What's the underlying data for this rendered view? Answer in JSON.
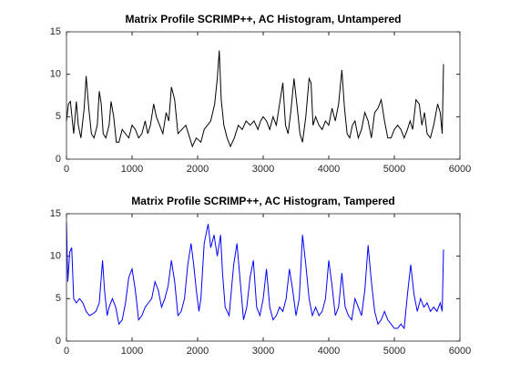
{
  "chart_data": [
    {
      "type": "line",
      "title": "Matrix Profile SCRIMP++, AC Histogram, Untampered",
      "x": [
        0,
        30,
        60,
        90,
        110,
        150,
        180,
        220,
        270,
        300,
        340,
        380,
        420,
        470,
        500,
        530,
        560,
        600,
        650,
        680,
        720,
        760,
        800,
        850,
        900,
        950,
        1000,
        1050,
        1100,
        1150,
        1200,
        1240,
        1280,
        1330,
        1370,
        1420,
        1470,
        1520,
        1560,
        1600,
        1650,
        1700,
        1760,
        1820,
        1880,
        1920,
        1980,
        2050,
        2100,
        2150,
        2200,
        2260,
        2300,
        2330,
        2360,
        2400,
        2450,
        2500,
        2560,
        2620,
        2680,
        2740,
        2800,
        2860,
        2920,
        2960,
        3000,
        3050,
        3100,
        3150,
        3200,
        3250,
        3300,
        3340,
        3380,
        3420,
        3470,
        3520,
        3560,
        3600,
        3650,
        3700,
        3730,
        3760,
        3800,
        3850,
        3900,
        3950,
        4000,
        4050,
        4100,
        4150,
        4200,
        4240,
        4280,
        4320,
        4360,
        4400,
        4450,
        4500,
        4550,
        4600,
        4650,
        4700,
        4750,
        4800,
        4850,
        4900,
        4950,
        5000,
        5050,
        5100,
        5150,
        5200,
        5240,
        5280,
        5330,
        5380,
        5420,
        5460,
        5500,
        5550,
        5600,
        5660,
        5700,
        5730,
        5750
      ],
      "series": [
        {
          "color": "#000000",
          "values": [
            4.5,
            6.5,
            6.8,
            4.5,
            3,
            6.8,
            4,
            2.5,
            6,
            9.8,
            6,
            3,
            2.5,
            4,
            8,
            6.5,
            3,
            2.5,
            4,
            6.8,
            5,
            2,
            2,
            3.5,
            3,
            2.5,
            4,
            3.5,
            2.5,
            3,
            4.5,
            3,
            4,
            6.5,
            5,
            4,
            3,
            5.5,
            4.5,
            8.5,
            7,
            3,
            3.5,
            4,
            2.5,
            1.5,
            2.5,
            2,
            3.5,
            4,
            4.5,
            6.5,
            9.5,
            12.8,
            7,
            4,
            2.5,
            1.5,
            2.5,
            4,
            3.5,
            4.5,
            4,
            4.5,
            3.5,
            4.5,
            5,
            4.5,
            3.5,
            5,
            4,
            6.5,
            9,
            4,
            3,
            5.5,
            9.5,
            6,
            3,
            2,
            5,
            9.5,
            9,
            4,
            5,
            4,
            3.5,
            4.5,
            4,
            6,
            4.5,
            6.5,
            10.5,
            6,
            3,
            2.5,
            4,
            4.5,
            2.5,
            3.5,
            5.5,
            4.5,
            2.5,
            5.5,
            6,
            7,
            4.5,
            2.5,
            2.5,
            3.5,
            4,
            3.5,
            2.5,
            3.5,
            4.5,
            3.5,
            7,
            6.5,
            4,
            5.5,
            3,
            2.5,
            4,
            6.5,
            5.5,
            3,
            11.2
          ]
        }
      ],
      "xlim": [
        0,
        6000
      ],
      "xticks": [
        0,
        1000,
        2000,
        3000,
        4000,
        5000,
        6000
      ],
      "ylim": [
        0,
        15
      ],
      "yticks": [
        0,
        5,
        10,
        15
      ]
    },
    {
      "type": "line",
      "title": "Matrix Profile SCRIMP++, AC Histogram, Tampered",
      "x": [
        0,
        20,
        50,
        80,
        110,
        150,
        200,
        250,
        300,
        350,
        400,
        450,
        500,
        550,
        580,
        620,
        650,
        700,
        750,
        800,
        850,
        900,
        950,
        1000,
        1050,
        1100,
        1150,
        1200,
        1250,
        1300,
        1350,
        1400,
        1450,
        1500,
        1550,
        1600,
        1650,
        1700,
        1750,
        1800,
        1850,
        1900,
        1940,
        1980,
        2020,
        2050,
        2100,
        2160,
        2200,
        2250,
        2300,
        2350,
        2380,
        2420,
        2480,
        2550,
        2600,
        2650,
        2700,
        2750,
        2800,
        2850,
        2900,
        2950,
        3000,
        3050,
        3100,
        3150,
        3200,
        3250,
        3300,
        3350,
        3400,
        3450,
        3500,
        3550,
        3600,
        3650,
        3700,
        3750,
        3800,
        3850,
        3900,
        3950,
        4000,
        4050,
        4100,
        4150,
        4200,
        4250,
        4300,
        4350,
        4400,
        4450,
        4500,
        4550,
        4600,
        4650,
        4700,
        4750,
        4800,
        4850,
        4900,
        4950,
        5000,
        5050,
        5100,
        5150,
        5200,
        5250,
        5300,
        5350,
        5400,
        5450,
        5500,
        5550,
        5600,
        5650,
        5700,
        5730,
        5750
      ],
      "series": [
        {
          "color": "#0000ff",
          "values": [
            14,
            7,
            10.5,
            11,
            5,
            4.5,
            5,
            4.5,
            3.5,
            3,
            3.2,
            3.5,
            4.5,
            9.5,
            6,
            3,
            4,
            5,
            4,
            2,
            2.5,
            4.5,
            7.5,
            8.5,
            6,
            2.5,
            3,
            4,
            4.5,
            5,
            7,
            6,
            4,
            5,
            6.5,
            9.5,
            7,
            3,
            3.5,
            5,
            9,
            11.5,
            9,
            6,
            3.5,
            5,
            11.5,
            13.8,
            11,
            12.5,
            10,
            12.5,
            8,
            4,
            3,
            9,
            11.5,
            7,
            2.5,
            4,
            7.5,
            9.5,
            4,
            3,
            5,
            8.5,
            4,
            2.5,
            3,
            4,
            3.5,
            5,
            8.5,
            6,
            3,
            5,
            12.5,
            9,
            5,
            3,
            4,
            3,
            3.5,
            5,
            9.5,
            6.5,
            3,
            4,
            8,
            4,
            3,
            2.5,
            5,
            4,
            3,
            6,
            11.3,
            7,
            3.5,
            2,
            2.5,
            3.5,
            2.5,
            2,
            1.5,
            1.5,
            2,
            1.5,
            5.5,
            9,
            5.5,
            3.5,
            5,
            4,
            4.5,
            3.5,
            4,
            3.5,
            4.5,
            3.5,
            10.8
          ]
        }
      ],
      "xlim": [
        0,
        6000
      ],
      "xticks": [
        0,
        1000,
        2000,
        3000,
        4000,
        5000,
        6000
      ],
      "ylim": [
        0,
        15
      ],
      "yticks": [
        0,
        5,
        10,
        15
      ]
    }
  ]
}
